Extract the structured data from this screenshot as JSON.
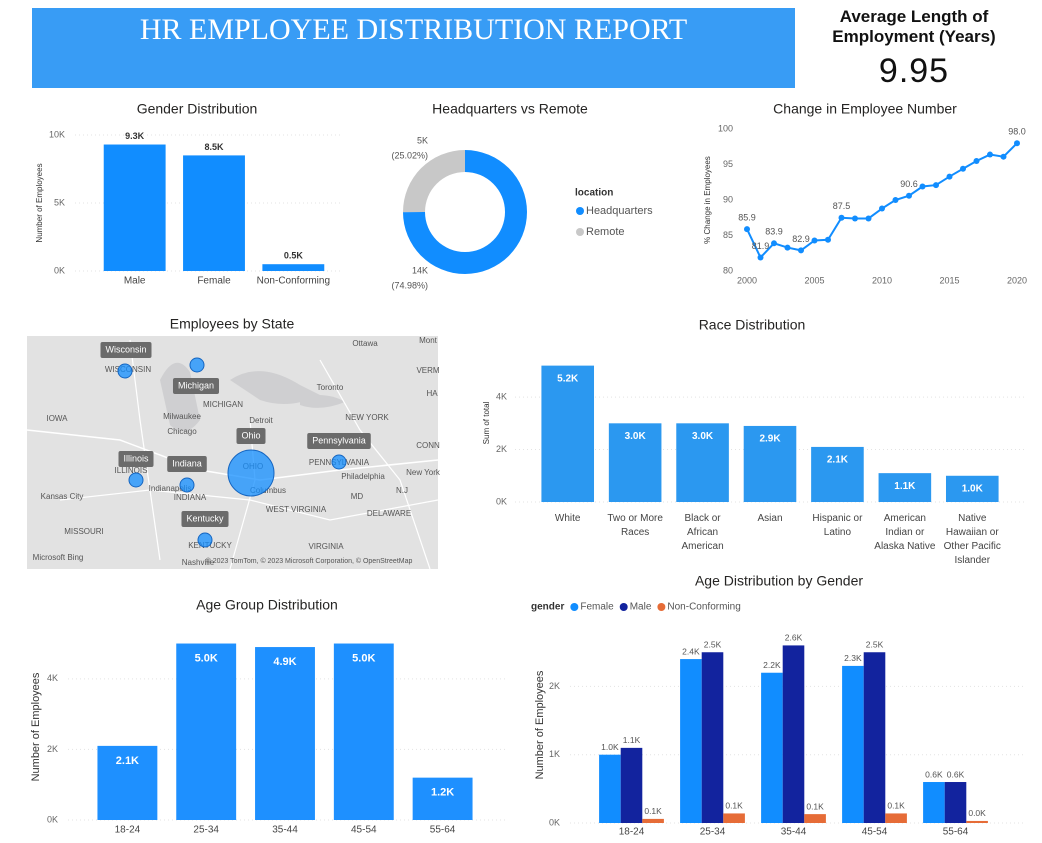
{
  "header": {
    "title": "HR EMPLOYEE DISTRIBUTION REPORT"
  },
  "kpi": {
    "label": "Average Length of Employment (Years)",
    "value": 9.95
  },
  "chart_data": [
    {
      "type": "bar",
      "title": "Gender Distribution",
      "y_label": "Number of Employees",
      "categories": [
        "Male",
        "Female",
        "Non-Conforming"
      ],
      "values": [
        9300,
        8500,
        500
      ],
      "value_labels": [
        "9.3K",
        "8.5K",
        "0.5K"
      ],
      "color": "#118DFF",
      "ylim": [
        0,
        10000
      ],
      "yticks": [
        {
          "value": 0,
          "label": "0K"
        },
        {
          "value": 5000,
          "label": "5K"
        },
        {
          "value": 10000,
          "label": "10K"
        }
      ],
      "grid": true
    },
    {
      "type": "donut",
      "title": "Headquarters vs Remote",
      "legend_title": "location",
      "categories": [
        "Headquarters",
        "Remote"
      ],
      "values": [
        74.98,
        25.02
      ],
      "value_labels": [
        "(74.98%)",
        "(25.02%)"
      ],
      "counts": [
        14000,
        5000
      ],
      "count_labels": [
        "14K",
        "5K"
      ],
      "colors": [
        "#118DFF",
        "#C8C8C8"
      ],
      "legend": "right"
    },
    {
      "type": "line",
      "title": "Change in Employee Number",
      "y_label": "% Change in Employees",
      "x": [
        2000,
        2001,
        2002,
        2003,
        2004,
        2005,
        2006,
        2007,
        2008,
        2009,
        2010,
        2011,
        2012,
        2013,
        2014,
        2015,
        2016,
        2017,
        2018,
        2019,
        2020
      ],
      "values": [
        85.9,
        81.9,
        83.9,
        83.3,
        82.9,
        84.3,
        84.4,
        87.5,
        87.4,
        87.4,
        88.8,
        90.0,
        90.6,
        91.9,
        92.1,
        93.3,
        94.4,
        95.5,
        96.4,
        96.1,
        98.0
      ],
      "value_labels": [
        "85.9",
        "81.9",
        "83.9",
        null,
        "82.9",
        null,
        null,
        "87.5",
        null,
        null,
        null,
        null,
        "90.6",
        null,
        null,
        null,
        null,
        null,
        null,
        null,
        "98.0"
      ],
      "color": "#118DFF",
      "xlim": [
        2000,
        2020
      ],
      "xticks": [
        2000,
        2005,
        2010,
        2015,
        2020
      ],
      "ylim": [
        80,
        100
      ],
      "yticks": [
        80,
        85,
        90,
        95,
        100
      ],
      "grid": false
    },
    {
      "type": "bubble_map",
      "title": "Employees by State",
      "categories": [
        "Wisconsin",
        "Michigan",
        "Illinois",
        "Indiana",
        "Ohio",
        "Pennsylvania",
        "Kentucky"
      ],
      "values": [
        1300,
        1300,
        1300,
        1300,
        14000,
        1300,
        1300
      ],
      "color": "#118DFF",
      "map_labels": [
        "Ottawa",
        "Mont",
        "VERM",
        "Toronto",
        "HA",
        "IOWA",
        "Milwaukee",
        "Chicago",
        "MICHIGAN",
        "Detroit",
        "NEW YORK",
        "CONN",
        "New York",
        "Philadelphia",
        "PENNSYLVANIA",
        "WISCONSIN",
        "ILLINOIS",
        "INDIANA",
        "OHIO",
        "Columbus",
        "Indianapolis",
        "Kansas City",
        "MISSOURI",
        "WEST VIRGINIA",
        "MD",
        "N.J",
        "DELAWARE",
        "KENTUCKY",
        "VIRGINIA",
        "Nashville",
        "Microsoft Bing",
        "© 2023 TomTom, © 2023 Microsoft Corporation, © OpenStreetMap"
      ]
    },
    {
      "type": "bar",
      "title": "Race Distribution",
      "y_label": "Sum of total",
      "categories": [
        "White",
        "Two or More Races",
        "Black or African American",
        "Asian",
        "Hispanic or Latino",
        "American Indian or Alaska Native",
        "Native Hawaiian or Other Pacific Islander"
      ],
      "values": [
        5200,
        3000,
        3000,
        2900,
        2100,
        1100,
        1000
      ],
      "value_labels": [
        "5.2K",
        "3.0K",
        "3.0K",
        "2.9K",
        "2.1K",
        "1.1K",
        "1.0K"
      ],
      "color": "#2B98F0",
      "ylim": [
        0,
        5300
      ],
      "yticks": [
        {
          "value": 0,
          "label": "0K"
        },
        {
          "value": 2000,
          "label": "2K"
        },
        {
          "value": 4000,
          "label": "4K"
        }
      ],
      "grid": true
    },
    {
      "type": "bar",
      "title": "Age Group Distribution",
      "y_label": "Number of Employees",
      "categories": [
        "18-24",
        "25-34",
        "35-44",
        "45-54",
        "55-64"
      ],
      "values": [
        2100,
        5000,
        4900,
        5000,
        1200
      ],
      "value_labels": [
        "2.1K",
        "5.0K",
        "4.9K",
        "5.0K",
        "1.2K"
      ],
      "color": "#1E90FF",
      "ylim": [
        0,
        5100
      ],
      "yticks": [
        {
          "value": 0,
          "label": "0K"
        },
        {
          "value": 2000,
          "label": "2K"
        },
        {
          "value": 4000,
          "label": "4K"
        }
      ],
      "grid": true
    },
    {
      "type": "grouped_bar",
      "title": "Age Distribution by Gender",
      "y_label": "Number of Employees",
      "legend_title": "gender",
      "categories": [
        "18-24",
        "25-34",
        "35-44",
        "45-54",
        "55-64"
      ],
      "series": [
        {
          "name": "Female",
          "color": "#118DFF",
          "values": [
            1000,
            2400,
            2200,
            2300,
            600
          ],
          "value_labels": [
            "1.0K",
            "2.4K",
            "2.2K",
            "2.3K",
            "0.6K"
          ]
        },
        {
          "name": "Male",
          "color": "#12239E",
          "values": [
            1100,
            2500,
            2600,
            2500,
            600
          ],
          "value_labels": [
            "1.1K",
            "2.5K",
            "2.6K",
            "2.5K",
            "0.6K"
          ]
        },
        {
          "name": "Non-Conforming",
          "color": "#E66C37",
          "values": [
            60,
            140,
            130,
            140,
            30
          ],
          "value_labels": [
            "0.1K",
            "0.1K",
            "0.1K",
            "0.1K",
            "0.0K"
          ]
        }
      ],
      "ylim": [
        0,
        2650
      ],
      "yticks": [
        {
          "value": 0,
          "label": "0K"
        },
        {
          "value": 1000,
          "label": "1K"
        },
        {
          "value": 2000,
          "label": "2K"
        }
      ],
      "grid": true,
      "legend": "top-left"
    }
  ]
}
